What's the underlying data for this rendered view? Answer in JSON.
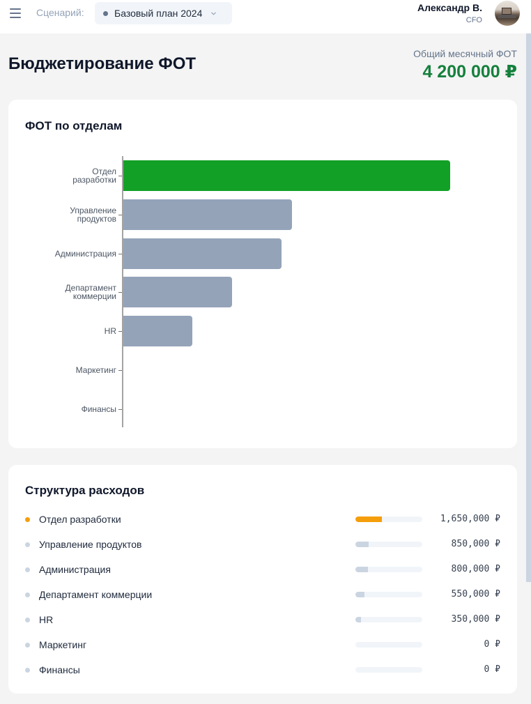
{
  "header": {
    "menu_icon": "hamburger-icon",
    "scenario_label": "Сценарий:",
    "scenario_value": "Базовый план 2024",
    "user_name": "Александр В.",
    "user_role": "CFO"
  },
  "page": {
    "title": "Бюджетирование ФОТ",
    "total_label": "Общий месячный ФОТ",
    "total_value": "4 200 000 ₽"
  },
  "chart_card": {
    "title": "ФОТ по отделам"
  },
  "chart_data": {
    "type": "bar",
    "orientation": "horizontal",
    "title": "ФОТ по отделам",
    "categories": [
      "Отдел разработки",
      "Управление продуктов",
      "Администрация",
      "Департамент коммерции",
      "HR",
      "Маркетинг",
      "Финансы"
    ],
    "category_labels_wrapped": [
      "Отдел\nразработки",
      "Управление\nпродуктов",
      "Администрация",
      "Департамент\nкоммерции",
      "HR",
      "Маркетинг",
      "Финансы"
    ],
    "values": [
      1650000,
      850000,
      800000,
      550000,
      350000,
      0,
      0
    ],
    "colors": [
      "#13a027",
      "#94a3b8",
      "#94a3b8",
      "#94a3b8",
      "#94a3b8",
      "#94a3b8",
      "#94a3b8"
    ],
    "xlabel": "",
    "ylabel": "",
    "grid": false,
    "legend": false
  },
  "structure_card": {
    "title": "Структура расходов",
    "items": [
      {
        "label": "Отдел разработки",
        "value": "1,650,000 ₽",
        "pct": 39.3,
        "color": "#f59e0b",
        "dot": "#f59e0b"
      },
      {
        "label": "Управление продуктов",
        "value": "850,000 ₽",
        "pct": 20.2,
        "color": "#cbd5e1",
        "dot": "#cbd5e1"
      },
      {
        "label": "Администрация",
        "value": "800,000 ₽",
        "pct": 19.0,
        "color": "#cbd5e1",
        "dot": "#cbd5e1"
      },
      {
        "label": "Департамент коммерции",
        "value": "550,000 ₽",
        "pct": 13.1,
        "color": "#cbd5e1",
        "dot": "#cbd5e1"
      },
      {
        "label": "HR",
        "value": "350,000 ₽",
        "pct": 8.3,
        "color": "#cbd5e1",
        "dot": "#cbd5e1"
      },
      {
        "label": "Маркетинг",
        "value": "0 ₽",
        "pct": 0,
        "color": "#cbd5e1",
        "dot": "#cbd5e1"
      },
      {
        "label": "Финансы",
        "value": "0 ₽",
        "pct": 0,
        "color": "#cbd5e1",
        "dot": "#cbd5e1"
      }
    ]
  },
  "colors": {
    "accent_green": "#15803d",
    "bar_primary": "#13a027",
    "bar_secondary": "#94a3b8",
    "highlight_orange": "#f59e0b"
  }
}
